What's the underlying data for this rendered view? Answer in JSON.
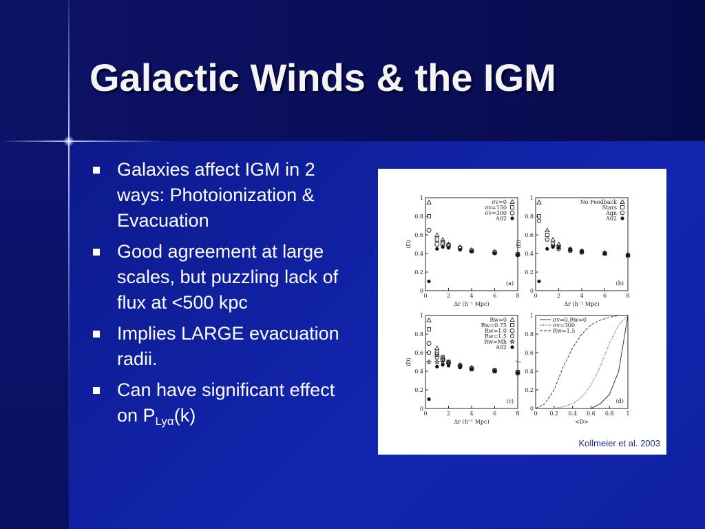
{
  "slide": {
    "title": "Galactic Winds & the IGM",
    "bullets": [
      {
        "text": "Galaxies affect IGM in 2 ways: Photoionization & Evacuation"
      },
      {
        "text": "Good agreement at large scales, but puzzling lack of flux at <500 kpc"
      },
      {
        "text": "Implies LARGE evacuation radii."
      },
      {
        "text": "Can have significant effect on P",
        "subscript": "Lyα",
        "suffix": "(k)"
      }
    ],
    "figure": {
      "caption": "Kollmeier et al. 2003",
      "panels": [
        {
          "type": "scatter",
          "label": "(a)",
          "xlabel": "Δr (h⁻¹ Mpc)",
          "ylabel": "⟨D⟩",
          "xlim": [
            0,
            8
          ],
          "ylim": [
            0,
            1
          ],
          "xticks": [
            0,
            2,
            4,
            6,
            8
          ],
          "yticks": [
            0,
            0.2,
            0.4,
            0.6,
            0.8,
            1
          ],
          "legend": "upper right",
          "x": [
            0.3,
            1,
            1.5,
            2,
            3,
            4,
            6,
            8
          ],
          "series": [
            {
              "name": "σv=0",
              "marker": "triangle",
              "values": [
                0.95,
                0.6,
                0.55,
                0.5,
                0.47,
                0.44,
                0.42,
                0.4
              ]
            },
            {
              "name": "σv=150",
              "marker": "square",
              "values": [
                0.8,
                0.55,
                0.52,
                0.49,
                0.46,
                0.43,
                0.41,
                0.39
              ]
            },
            {
              "name": "σv=300",
              "marker": "circle",
              "values": [
                0.65,
                0.5,
                0.5,
                0.48,
                0.46,
                0.43,
                0.41,
                0.39
              ]
            },
            {
              "name": "A02",
              "marker": "dot",
              "values": [
                0.1,
                0.45,
                0.47,
                0.46,
                0.44,
                0.42,
                0.4,
                0.38
              ]
            }
          ]
        },
        {
          "type": "scatter",
          "label": "(b)",
          "xlabel": "Δr (h⁻¹ Mpc)",
          "ylabel": "⟨D⟩",
          "xlim": [
            0,
            8
          ],
          "ylim": [
            0,
            1
          ],
          "xticks": [
            0,
            2,
            4,
            6,
            8
          ],
          "yticks": [
            0,
            0.2,
            0.4,
            0.6,
            0.8,
            1
          ],
          "legend": "upper right",
          "x": [
            0.3,
            1,
            1.5,
            2,
            3,
            4,
            6,
            8
          ],
          "series": [
            {
              "name": "No Feedback",
              "marker": "triangle",
              "values": [
                0.95,
                0.65,
                0.55,
                0.5,
                0.45,
                0.43,
                0.41,
                0.39
              ]
            },
            {
              "name": "Stars",
              "marker": "square",
              "values": [
                0.8,
                0.6,
                0.5,
                0.47,
                0.44,
                0.42,
                0.4,
                0.38
              ]
            },
            {
              "name": "Agn",
              "marker": "pentagon",
              "values": [
                0.75,
                0.55,
                0.48,
                0.45,
                0.43,
                0.41,
                0.4,
                0.38
              ]
            },
            {
              "name": "A02",
              "marker": "dot",
              "values": [
                0.1,
                0.45,
                0.47,
                0.46,
                0.44,
                0.42,
                0.4,
                0.38
              ]
            }
          ]
        },
        {
          "type": "scatter",
          "label": "(c)",
          "xlabel": "Δr (h⁻¹ Mpc)",
          "ylabel": "⟨D⟩",
          "xlim": [
            0,
            8
          ],
          "ylim": [
            0,
            1
          ],
          "xticks": [
            0,
            2,
            4,
            6,
            8
          ],
          "yticks": [
            0,
            0.2,
            0.4,
            0.6,
            0.8,
            1
          ],
          "legend": "upper right",
          "x": [
            0.3,
            1,
            1.5,
            2,
            3,
            4,
            6,
            8
          ],
          "series": [
            {
              "name": "Rw=0",
              "marker": "triangle",
              "values": [
                0.95,
                0.65,
                0.55,
                0.5,
                0.47,
                0.44,
                0.41,
                0.39
              ]
            },
            {
              "name": "Rw=0.75",
              "marker": "square",
              "values": [
                0.85,
                0.6,
                0.55,
                0.5,
                0.46,
                0.43,
                0.41,
                0.39
              ]
            },
            {
              "name": "Rw=1.0",
              "marker": "circle",
              "values": [
                0.7,
                0.58,
                0.53,
                0.49,
                0.46,
                0.43,
                0.41,
                0.39
              ]
            },
            {
              "name": "Rw=1.5",
              "marker": "pentagon",
              "values": [
                0.6,
                0.55,
                0.52,
                0.48,
                0.45,
                0.43,
                0.4,
                0.38
              ]
            },
            {
              "name": "Rw=Mh",
              "marker": "star",
              "values": [
                0.5,
                0.5,
                0.5,
                0.48,
                0.45,
                0.42,
                0.4,
                0.38
              ]
            },
            {
              "name": "A02",
              "marker": "dot",
              "values": [
                0.1,
                0.45,
                0.47,
                0.46,
                0.44,
                0.42,
                0.4,
                0.38
              ]
            }
          ]
        },
        {
          "type": "line",
          "label": "(d)",
          "xlabel": "<D>",
          "ylabel": "f",
          "xlim": [
            0,
            1
          ],
          "ylim": [
            0,
            1
          ],
          "xticks": [
            0,
            0.2,
            0.4,
            0.6,
            0.8,
            1
          ],
          "yticks": [
            0,
            0.2,
            0.4,
            0.6,
            0.8,
            1
          ],
          "legend": "upper left",
          "x": [
            0,
            0.1,
            0.2,
            0.3,
            0.4,
            0.5,
            0.6,
            0.7,
            0.8,
            0.9,
            1
          ],
          "series": [
            {
              "name": "σv=0,Rw=0",
              "dash": "solid",
              "values": [
                0,
                0,
                0,
                0,
                0,
                0,
                0,
                0.05,
                0.15,
                0.4,
                1
              ]
            },
            {
              "name": "σv=300",
              "dash": "dotted",
              "values": [
                0,
                0,
                0,
                0.02,
                0.05,
                0.12,
                0.25,
                0.45,
                0.7,
                0.9,
                1
              ]
            },
            {
              "name": "Rw=1.5",
              "dash": "dashed",
              "values": [
                0,
                0.05,
                0.2,
                0.45,
                0.65,
                0.8,
                0.9,
                0.95,
                0.98,
                1,
                1
              ]
            }
          ]
        }
      ]
    }
  }
}
